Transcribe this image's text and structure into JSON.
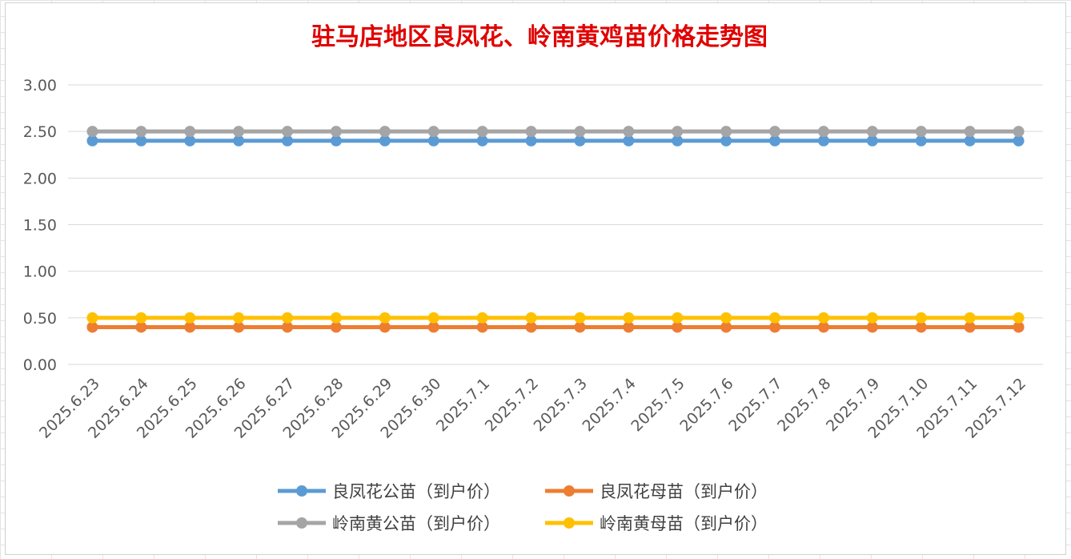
{
  "chart_data": {
    "type": "line",
    "title": "驻马店地区良凤花、岭南黄鸡苗价格走势图",
    "xlabel": "",
    "ylabel": "",
    "categories": [
      "2025.6.23",
      "2025.6.24",
      "2025.6.25",
      "2025.6.26",
      "2025.6.27",
      "2025.6.28",
      "2025.6.29",
      "2025.6.30",
      "2025.7.1",
      "2025.7.2",
      "2025.7.3",
      "2025.7.4",
      "2025.7.5",
      "2025.7.6",
      "2025.7.7",
      "2025.7.8",
      "2025.7.9",
      "2025.7.10",
      "2025.7.11",
      "2025.7.12"
    ],
    "ylim": [
      0,
      3
    ],
    "yticks": [
      "0.00",
      "0.50",
      "1.00",
      "1.50",
      "2.00",
      "2.50",
      "3.00"
    ],
    "grid": true,
    "legend_position": "bottom",
    "title_color": "#e00000",
    "series": [
      {
        "name": "良凤花公苗（到户价）",
        "color": "#5b9bd5",
        "values": [
          2.4,
          2.4,
          2.4,
          2.4,
          2.4,
          2.4,
          2.4,
          2.4,
          2.4,
          2.4,
          2.4,
          2.4,
          2.4,
          2.4,
          2.4,
          2.4,
          2.4,
          2.4,
          2.4,
          2.4
        ]
      },
      {
        "name": "良凤花母苗（到户价）",
        "color": "#ed7d31",
        "values": [
          0.4,
          0.4,
          0.4,
          0.4,
          0.4,
          0.4,
          0.4,
          0.4,
          0.4,
          0.4,
          0.4,
          0.4,
          0.4,
          0.4,
          0.4,
          0.4,
          0.4,
          0.4,
          0.4,
          0.4
        ]
      },
      {
        "name": "岭南黄公苗（到户价）",
        "color": "#a5a5a5",
        "values": [
          2.5,
          2.5,
          2.5,
          2.5,
          2.5,
          2.5,
          2.5,
          2.5,
          2.5,
          2.5,
          2.5,
          2.5,
          2.5,
          2.5,
          2.5,
          2.5,
          2.5,
          2.5,
          2.5,
          2.5
        ]
      },
      {
        "name": "岭南黄母苗（到户价）",
        "color": "#ffc000",
        "values": [
          0.5,
          0.5,
          0.5,
          0.5,
          0.5,
          0.5,
          0.5,
          0.5,
          0.5,
          0.5,
          0.5,
          0.5,
          0.5,
          0.5,
          0.5,
          0.5,
          0.5,
          0.5,
          0.5,
          0.5
        ]
      }
    ]
  }
}
